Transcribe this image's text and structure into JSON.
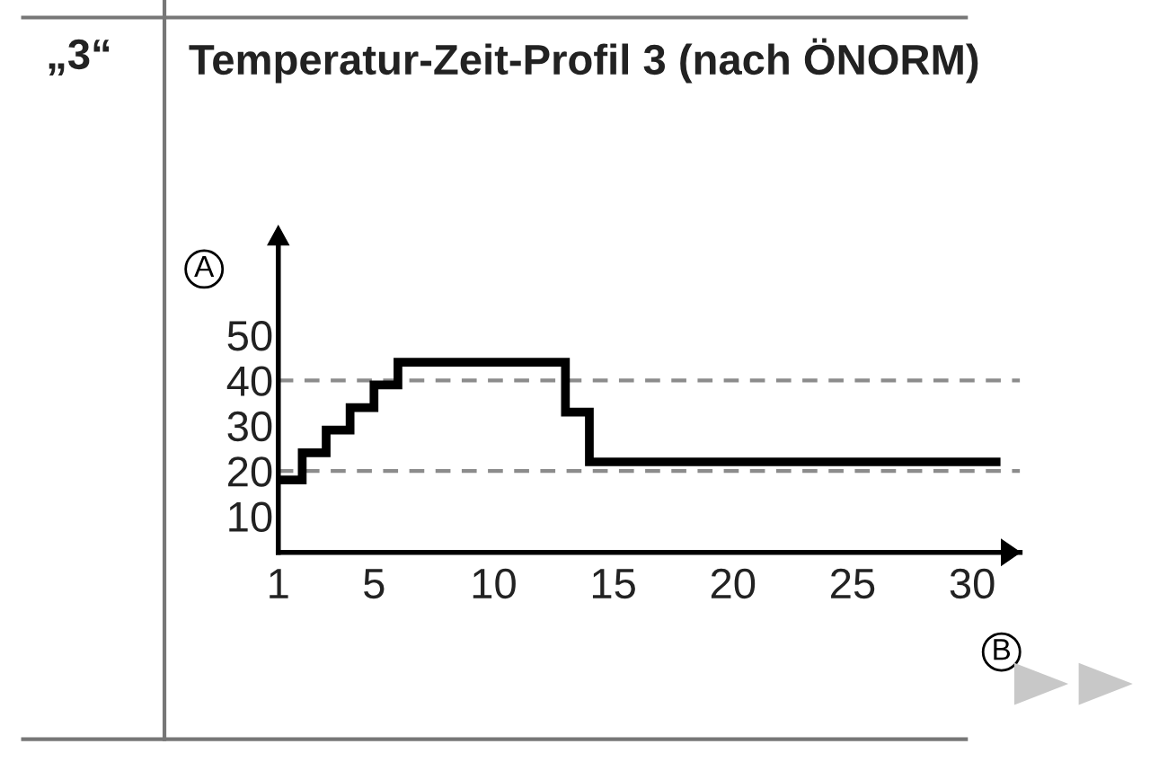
{
  "chart_data": {
    "type": "step",
    "title": "Temperatur-Zeit-Profil 3 (nach ÖNORM)",
    "xlabel": "B",
    "ylabel": "A",
    "annotations": [
      "„3“"
    ],
    "x": [
      1,
      2,
      3,
      4,
      5,
      6,
      13,
      14,
      31
    ],
    "series": [
      {
        "color": "#000000",
        "values": [
          18,
          24,
          29,
          34,
          39,
          44,
          33,
          22,
          22
        ]
      }
    ],
    "xlim": [
      1,
      32
    ],
    "ylim": [
      2,
      72
    ],
    "xticks": [
      1,
      5,
      10,
      15,
      20,
      25,
      30
    ],
    "yticks": [
      10,
      20,
      30,
      40,
      50
    ],
    "ref_lines": [
      {
        "axis": "y",
        "value": 20,
        "color": "#8c8c8c",
        "line_style": "dashed"
      },
      {
        "axis": "y",
        "value": 40,
        "color": "#8c8c8c",
        "line_style": "dashed"
      }
    ],
    "grid": false,
    "line_style": "solid",
    "marker": "none"
  }
}
